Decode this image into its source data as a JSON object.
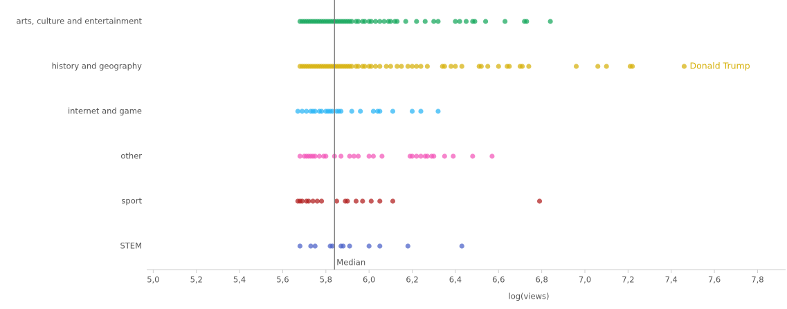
{
  "chart_data": {
    "type": "strip",
    "x_label": "log(views)",
    "xlim": [
      4.97,
      7.93
    ],
    "xticks": [
      {
        "value": 5.0,
        "label": "5,0"
      },
      {
        "value": 5.2,
        "label": "5,2"
      },
      {
        "value": 5.4,
        "label": "5,4"
      },
      {
        "value": 5.6,
        "label": "5,6"
      },
      {
        "value": 5.8,
        "label": "5,8"
      },
      {
        "value": 6.0,
        "label": "6,0"
      },
      {
        "value": 6.2,
        "label": "6,2"
      },
      {
        "value": 6.4,
        "label": "6,4"
      },
      {
        "value": 6.6,
        "label": "6,6"
      },
      {
        "value": 6.8,
        "label": "6,8"
      },
      {
        "value": 7.0,
        "label": "7,0"
      },
      {
        "value": 7.2,
        "label": "7,2"
      },
      {
        "value": 7.4,
        "label": "7,4"
      },
      {
        "value": 7.6,
        "label": "7,6"
      },
      {
        "value": 7.8,
        "label": "7,8"
      }
    ],
    "reference_line": {
      "label": "Median",
      "value": 5.84
    },
    "annotations": [
      {
        "text": "Donald Trump",
        "x": 7.46
      }
    ],
    "series": [
      {
        "name": "arts, culture and entertainment",
        "color": "#13a65a",
        "values": [
          5.68,
          5.69,
          5.7,
          5.71,
          5.72,
          5.73,
          5.74,
          5.75,
          5.76,
          5.77,
          5.78,
          5.79,
          5.8,
          5.81,
          5.82,
          5.83,
          5.84,
          5.85,
          5.86,
          5.87,
          5.88,
          5.89,
          5.9,
          5.91,
          5.92,
          5.94,
          5.95,
          5.97,
          5.98,
          6.0,
          6.01,
          6.03,
          6.05,
          6.07,
          6.09,
          6.1,
          6.12,
          6.13,
          6.17,
          6.22,
          6.26,
          6.3,
          6.32,
          6.4,
          6.42,
          6.45,
          6.48,
          6.49,
          6.54,
          6.63,
          6.72,
          6.73,
          6.84
        ]
      },
      {
        "name": "history and geography",
        "color": "#d6b00a",
        "values": [
          5.68,
          5.69,
          5.7,
          5.71,
          5.72,
          5.73,
          5.74,
          5.75,
          5.76,
          5.77,
          5.78,
          5.79,
          5.8,
          5.81,
          5.82,
          5.83,
          5.84,
          5.85,
          5.86,
          5.87,
          5.88,
          5.89,
          5.9,
          5.91,
          5.92,
          5.94,
          5.95,
          5.97,
          5.98,
          6.0,
          6.01,
          6.03,
          6.05,
          6.08,
          6.1,
          6.13,
          6.15,
          6.18,
          6.2,
          6.22,
          6.24,
          6.27,
          6.34,
          6.35,
          6.38,
          6.4,
          6.43,
          6.51,
          6.52,
          6.55,
          6.6,
          6.64,
          6.65,
          6.7,
          6.71,
          6.74,
          6.96,
          7.06,
          7.1,
          7.21,
          7.22,
          7.46
        ]
      },
      {
        "name": "internet and game",
        "color": "#27b4f5",
        "values": [
          5.67,
          5.69,
          5.71,
          5.73,
          5.74,
          5.75,
          5.77,
          5.78,
          5.8,
          5.81,
          5.82,
          5.83,
          5.85,
          5.86,
          5.87,
          5.92,
          5.96,
          6.02,
          6.04,
          6.05,
          6.11,
          6.2,
          6.24,
          6.32
        ]
      },
      {
        "name": "other",
        "color": "#f256b8",
        "values": [
          5.68,
          5.7,
          5.71,
          5.72,
          5.73,
          5.74,
          5.75,
          5.77,
          5.79,
          5.8,
          5.84,
          5.87,
          5.91,
          5.93,
          5.95,
          6.0,
          6.02,
          6.06,
          6.19,
          6.2,
          6.22,
          6.24,
          6.26,
          6.27,
          6.29,
          6.3,
          6.35,
          6.39,
          6.48,
          6.57
        ]
      },
      {
        "name": "sport",
        "color": "#b01c1c",
        "values": [
          5.67,
          5.68,
          5.69,
          5.71,
          5.72,
          5.74,
          5.76,
          5.78,
          5.85,
          5.89,
          5.9,
          5.94,
          5.97,
          6.01,
          6.05,
          6.11,
          6.79
        ]
      },
      {
        "name": "STEM",
        "color": "#4a5fc8",
        "values": [
          5.68,
          5.73,
          5.75,
          5.82,
          5.83,
          5.87,
          5.88,
          5.91,
          6.0,
          6.05,
          6.18,
          6.43
        ]
      }
    ]
  }
}
